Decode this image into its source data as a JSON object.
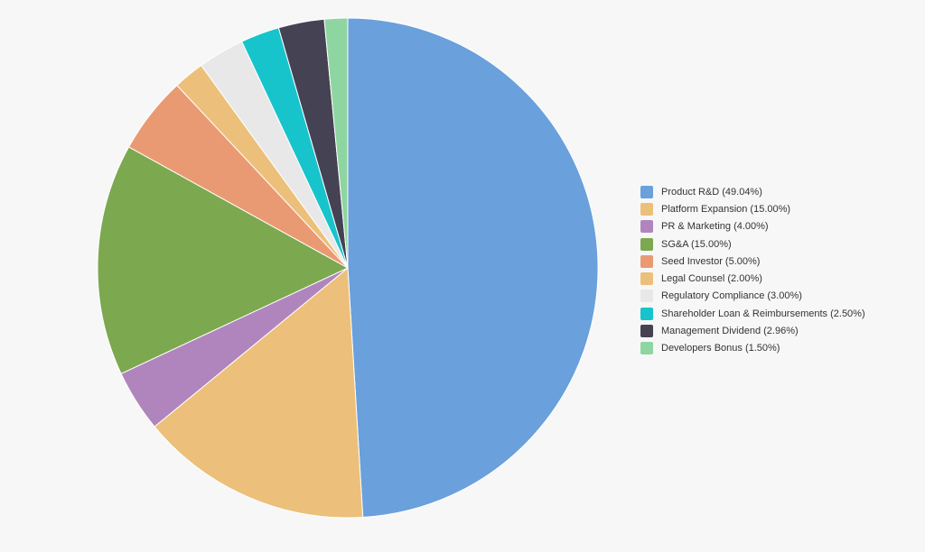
{
  "chart_data": {
    "type": "pie",
    "title": "",
    "legend_position": "right",
    "slices": [
      {
        "name": "Product R&D",
        "label": "Product R&D (49.04%)",
        "value": 49.04,
        "color": "#6aa0dc"
      },
      {
        "name": "Platform Expansion",
        "label": "Platform Expansion (15.00%)",
        "value": 15.0,
        "color": "#ecc07a"
      },
      {
        "name": "PR & Marketing",
        "label": "PR & Marketing (4.00%)",
        "value": 4.0,
        "color": "#b085bd"
      },
      {
        "name": "SG&A",
        "label": "SG&A (15.00%)",
        "value": 15.0,
        "color": "#7ca84f"
      },
      {
        "name": "Seed Investor",
        "label": "Seed Investor (5.00%)",
        "value": 5.0,
        "color": "#e99a72"
      },
      {
        "name": "Legal Counsel",
        "label": "Legal Counsel (2.00%)",
        "value": 2.0,
        "color": "#ecc07a"
      },
      {
        "name": "Regulatory Compliance",
        "label": "Regulatory Compliance (3.00%)",
        "value": 3.0,
        "color": "#e8e8e8"
      },
      {
        "name": "Shareholder Loan & Reimbursements",
        "label": "Shareholder Loan & Reimbursements (2.50%)",
        "value": 2.5,
        "color": "#17c4cc"
      },
      {
        "name": "Management Dividend",
        "label": "Management Dividend (2.96%)",
        "value": 2.96,
        "color": "#454254"
      },
      {
        "name": "Developers Bonus",
        "label": "Developers Bonus (1.50%)",
        "value": 1.5,
        "color": "#8fd5a2"
      }
    ]
  }
}
